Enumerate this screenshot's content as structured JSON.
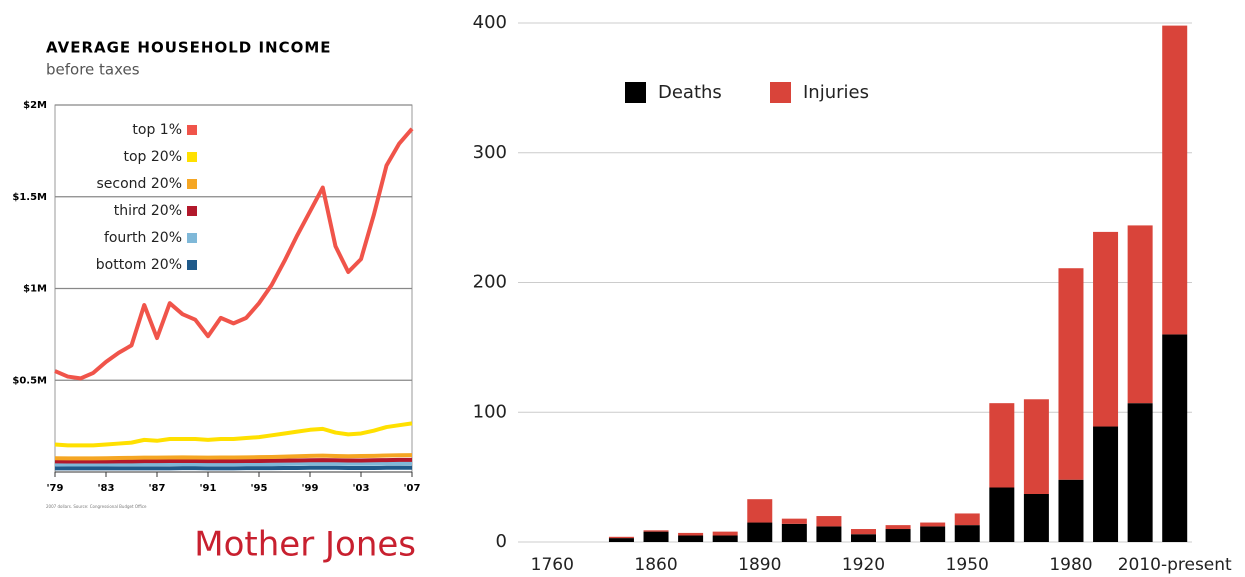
{
  "chart_data": [
    {
      "type": "line",
      "title": "AVERAGE HOUSEHOLD INCOME",
      "subtitle": "before taxes",
      "note": "2007 dollars. Source: Congressional Budget Office",
      "brand": "Mother Jones",
      "x": [
        1979,
        1980,
        1981,
        1982,
        1983,
        1984,
        1985,
        1986,
        1987,
        1988,
        1989,
        1990,
        1991,
        1992,
        1993,
        1994,
        1995,
        1996,
        1997,
        1998,
        1999,
        2000,
        2001,
        2002,
        2003,
        2004,
        2005,
        2006,
        2007
      ],
      "xlim": [
        1979,
        2007
      ],
      "xticks": [
        {
          "value": 1979,
          "label": "'79"
        },
        {
          "value": 1983,
          "label": "'83"
        },
        {
          "value": 1987,
          "label": "'87"
        },
        {
          "value": 1991,
          "label": "'91"
        },
        {
          "value": 1995,
          "label": "'95"
        },
        {
          "value": 1999,
          "label": "'99"
        },
        {
          "value": 2003,
          "label": "'03"
        },
        {
          "value": 2007,
          "label": "'07"
        }
      ],
      "ylim": [
        0,
        2
      ],
      "yticks": [
        {
          "value": 0.5,
          "label": "$0.5M"
        },
        {
          "value": 1,
          "label": "$1M"
        },
        {
          "value": 1.5,
          "label": "$1.5M"
        },
        {
          "value": 2,
          "label": "$2M"
        }
      ],
      "grid": true,
      "series": [
        {
          "name": "top 1%",
          "color": "#f0544a",
          "values": [
            0.55,
            0.52,
            0.51,
            0.54,
            0.6,
            0.65,
            0.69,
            0.91,
            0.73,
            0.92,
            0.86,
            0.83,
            0.74,
            0.84,
            0.81,
            0.84,
            0.92,
            1.02,
            1.15,
            1.29,
            1.42,
            1.55,
            1.23,
            1.09,
            1.16,
            1.4,
            1.67,
            1.79,
            1.87
          ]
        },
        {
          "name": "top 20%",
          "color": "#ffe000",
          "values": [
            0.15,
            0.145,
            0.145,
            0.145,
            0.15,
            0.155,
            0.16,
            0.175,
            0.17,
            0.18,
            0.18,
            0.18,
            0.175,
            0.18,
            0.18,
            0.185,
            0.19,
            0.2,
            0.21,
            0.22,
            0.23,
            0.235,
            0.215,
            0.205,
            0.21,
            0.225,
            0.245,
            0.255,
            0.265
          ]
        },
        {
          "name": "second 20%",
          "color": "#f5a623",
          "values": [
            0.075,
            0.074,
            0.074,
            0.074,
            0.075,
            0.076,
            0.077,
            0.078,
            0.078,
            0.079,
            0.08,
            0.079,
            0.078,
            0.079,
            0.079,
            0.08,
            0.081,
            0.082,
            0.084,
            0.086,
            0.088,
            0.089,
            0.087,
            0.086,
            0.087,
            0.088,
            0.09,
            0.091,
            0.092
          ]
        },
        {
          "name": "third 20%",
          "color": "#b2182b",
          "values": [
            0.058,
            0.057,
            0.057,
            0.057,
            0.057,
            0.058,
            0.058,
            0.059,
            0.059,
            0.06,
            0.06,
            0.06,
            0.059,
            0.059,
            0.059,
            0.06,
            0.06,
            0.061,
            0.062,
            0.063,
            0.064,
            0.065,
            0.064,
            0.063,
            0.063,
            0.064,
            0.065,
            0.066,
            0.066
          ]
        },
        {
          "name": "fourth 20%",
          "color": "#7fb8d8",
          "values": [
            0.042,
            0.041,
            0.041,
            0.041,
            0.041,
            0.042,
            0.042,
            0.042,
            0.042,
            0.043,
            0.043,
            0.043,
            0.042,
            0.042,
            0.042,
            0.043,
            0.043,
            0.043,
            0.044,
            0.045,
            0.046,
            0.046,
            0.045,
            0.045,
            0.045,
            0.045,
            0.046,
            0.046,
            0.047
          ]
        },
        {
          "name": "bottom 20%",
          "color": "#1f5a8a",
          "values": [
            0.02,
            0.02,
            0.02,
            0.02,
            0.02,
            0.02,
            0.02,
            0.02,
            0.02,
            0.02,
            0.021,
            0.021,
            0.02,
            0.02,
            0.02,
            0.021,
            0.021,
            0.021,
            0.022,
            0.022,
            0.023,
            0.023,
            0.023,
            0.022,
            0.022,
            0.022,
            0.023,
            0.023,
            0.023
          ]
        }
      ]
    },
    {
      "type": "bar",
      "stacked": true,
      "categories": [
        "1760",
        null,
        null,
        "1860",
        null,
        null,
        "1890",
        null,
        null,
        "1920",
        null,
        null,
        "1950",
        null,
        null,
        "1980",
        null,
        null,
        "2010-present"
      ],
      "ylim": [
        0,
        400
      ],
      "yticks": [
        0,
        100,
        200,
        300,
        400
      ],
      "grid": true,
      "series": [
        {
          "name": "Deaths",
          "color": "#000000",
          "values": [
            0,
            0,
            3,
            8,
            5,
            5,
            15,
            14,
            12,
            6,
            10,
            12,
            13,
            42,
            37,
            48,
            89,
            107,
            160
          ]
        },
        {
          "name": "Injuries",
          "color": "#d9443a",
          "values": [
            0,
            0,
            1,
            1,
            2,
            3,
            18,
            4,
            8,
            4,
            3,
            3,
            9,
            65,
            73,
            163,
            150,
            137,
            238
          ]
        }
      ]
    }
  ]
}
